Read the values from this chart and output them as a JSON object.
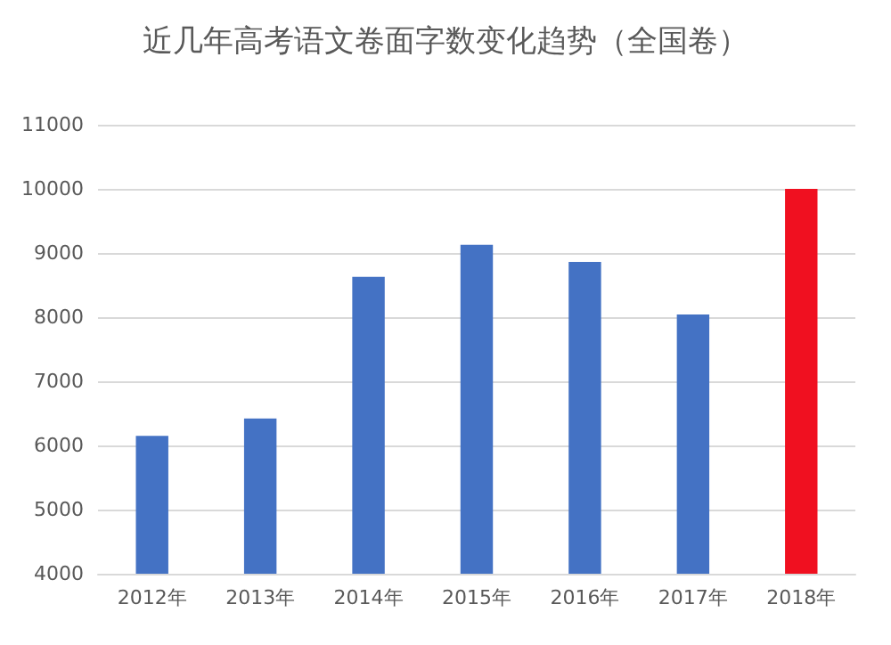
{
  "chart_data": {
    "type": "bar",
    "title": "近几年高考语文卷面字数变化趋势（全国卷）",
    "categories": [
      "2012年",
      "2013年",
      "2014年",
      "2015年",
      "2016年",
      "2017年",
      "2018年"
    ],
    "values": [
      6150,
      6420,
      8630,
      9130,
      8860,
      8040,
      10000
    ],
    "colors": [
      "#4472c4",
      "#4472c4",
      "#4472c4",
      "#4472c4",
      "#4472c4",
      "#4472c4",
      "#f01020"
    ],
    "ylim": [
      4000,
      11000
    ],
    "yticks": [
      4000,
      5000,
      6000,
      7000,
      8000,
      9000,
      10000,
      11000
    ],
    "grid": "y"
  }
}
